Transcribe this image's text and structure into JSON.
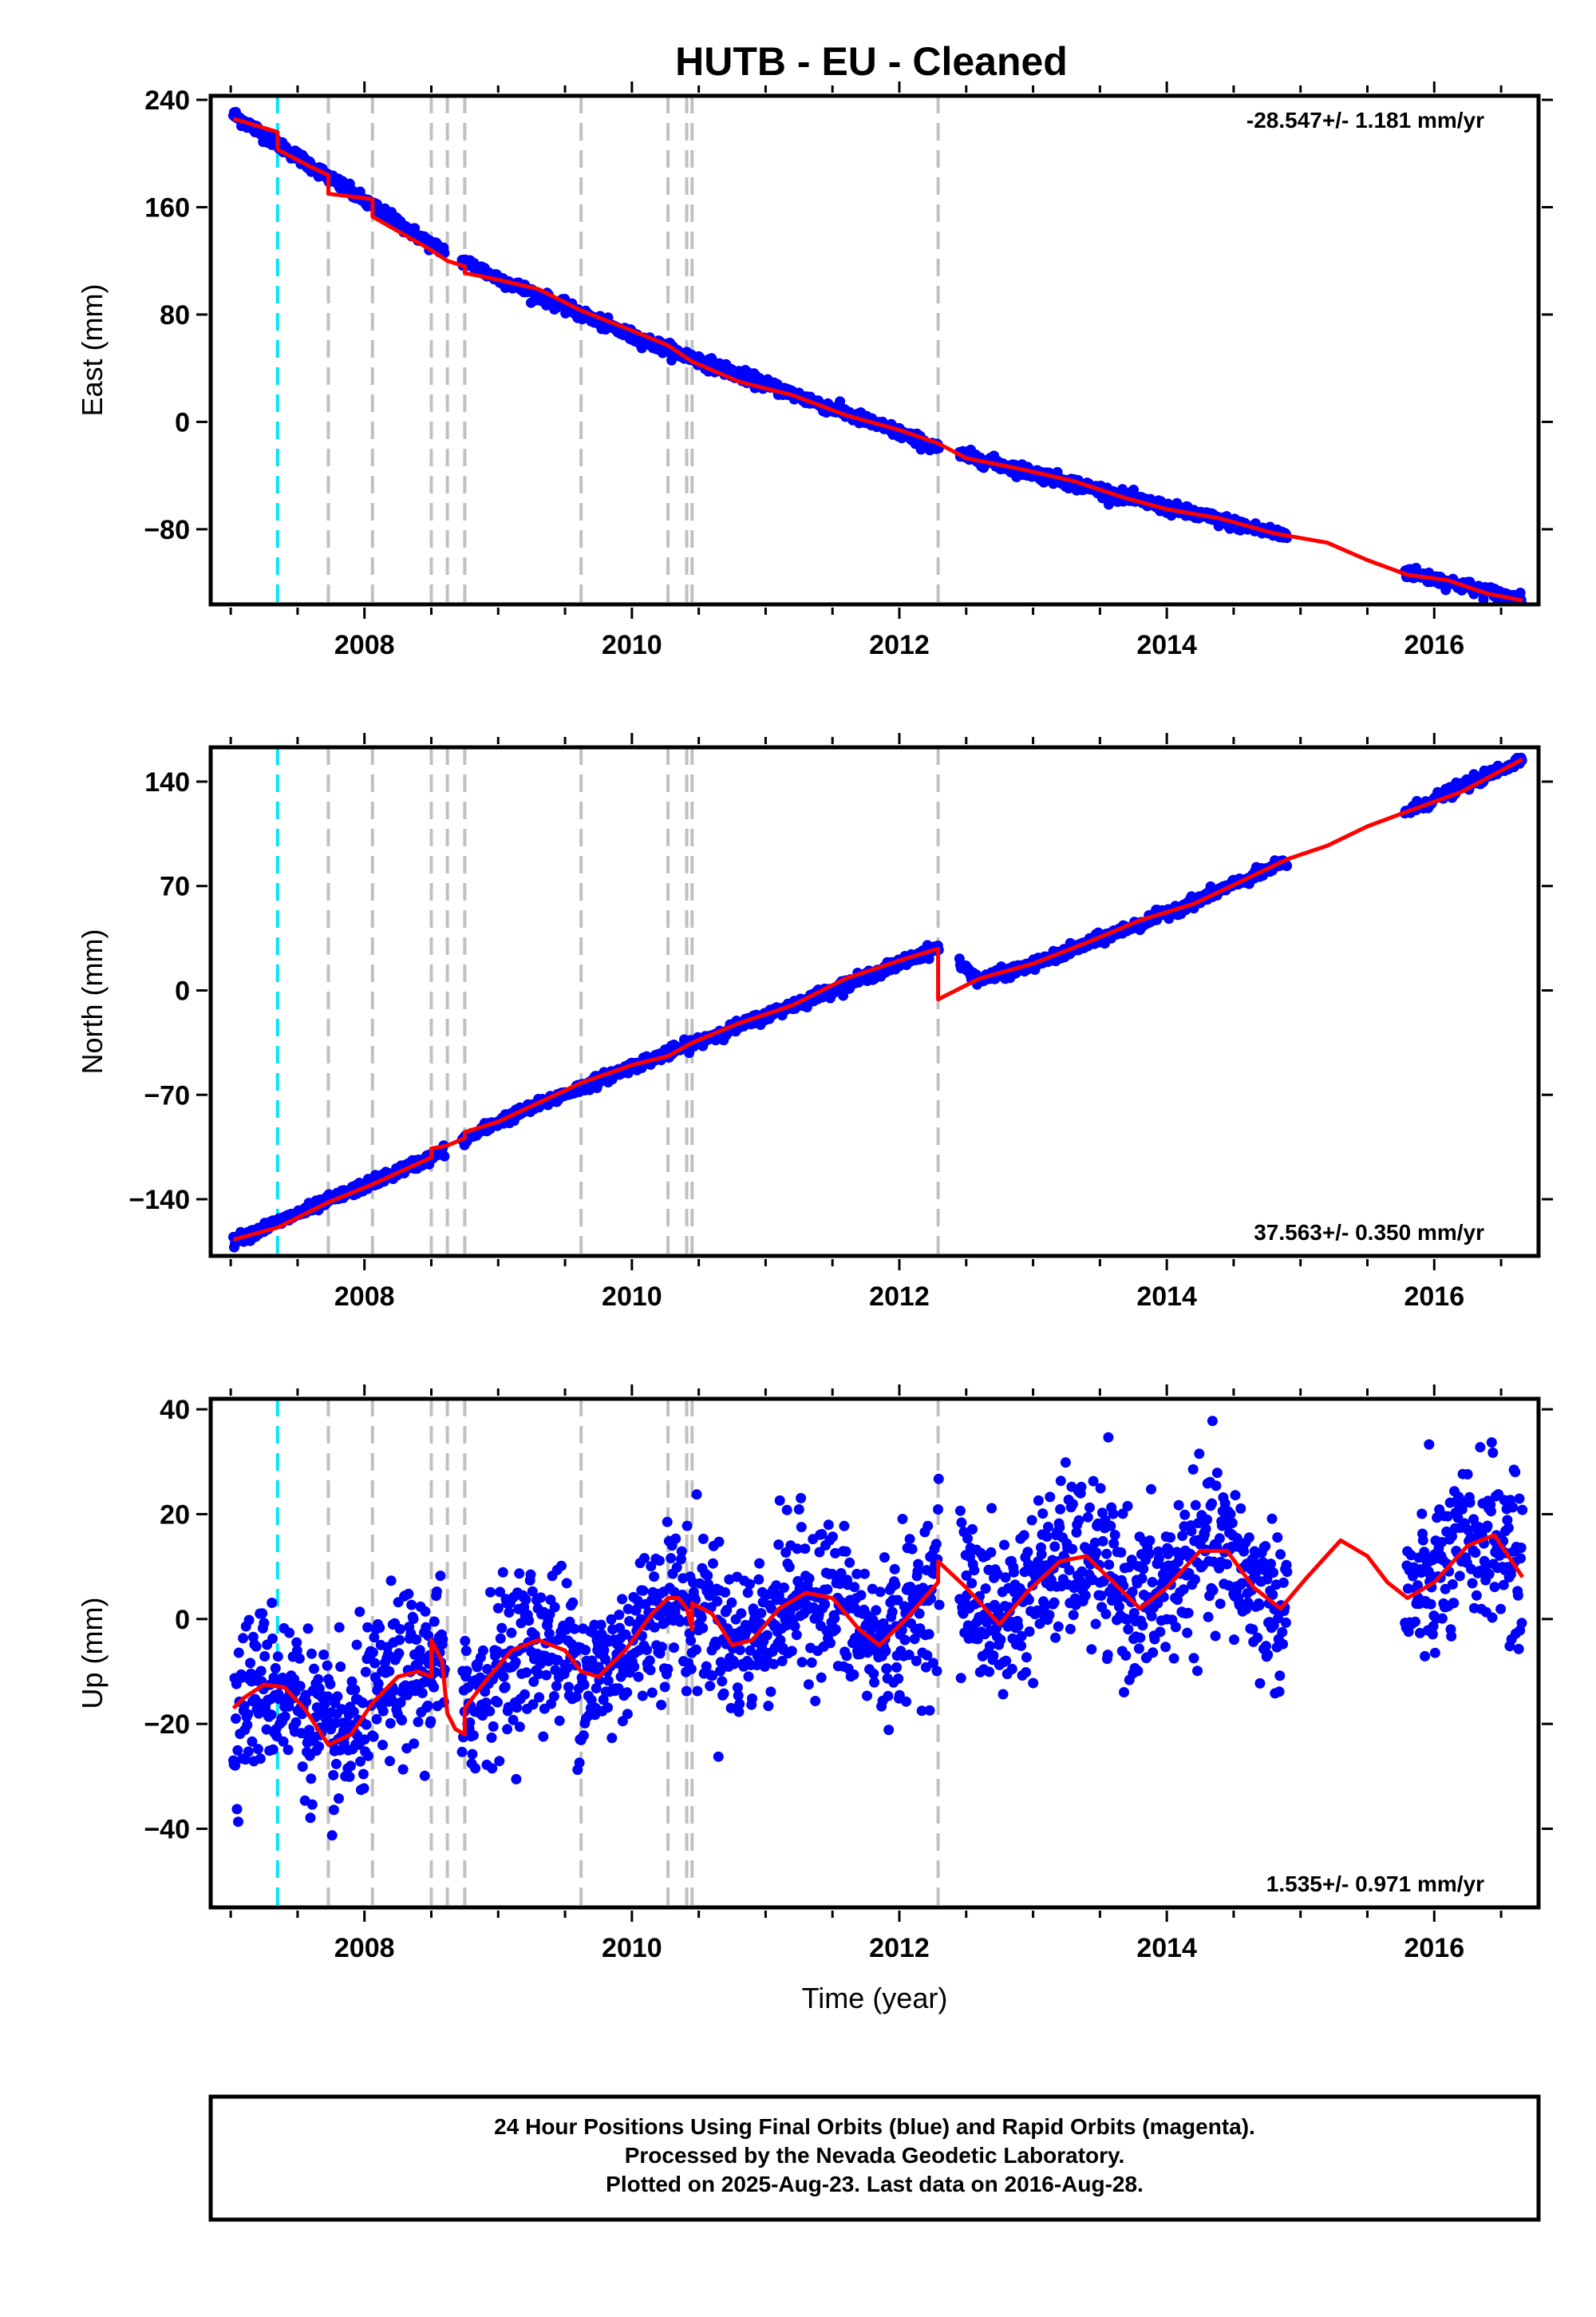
{
  "title": "HUTB  - EU - Cleaned",
  "colors": {
    "data": "#0000ff",
    "model": "#ff0000",
    "antenna_change": "#00e5ff",
    "event_line": "#c0c0c0"
  },
  "footer": {
    "line1": "24 Hour Positions Using Final Orbits (blue) and Rapid Orbits (magenta).",
    "line2": "Processed by the Nevada Geodetic Laboratory.",
    "line3": "Plotted on 2025-Aug-23. Last data on 2016-Aug-28."
  },
  "chart_data": [
    {
      "type": "scatter",
      "name": "east",
      "ylabel": "East (mm)",
      "xlabel": "",
      "rate": "-28.547+/- 1.181 mm/yr",
      "rate_position": "top-right",
      "xlim": [
        2006.85,
        2016.78
      ],
      "ylim": [
        -136,
        243
      ],
      "xticks": [
        2008,
        2010,
        2012,
        2014,
        2016
      ],
      "yticks": [
        240,
        160,
        80,
        0,
        -80
      ],
      "ytick_labels": [
        "240",
        "160",
        "80",
        "0",
        "−80"
      ],
      "antenna_change": [
        2007.35
      ],
      "events": [
        2007.73,
        2008.06,
        2008.5,
        2008.62,
        2008.75,
        2009.62,
        2010.27,
        2010.41,
        2010.45,
        2012.29
      ],
      "data_gaps": [
        [
          2008.6,
          2008.73
        ],
        [
          2012.3,
          2012.45
        ],
        [
          2014.9,
          2015.78
        ]
      ],
      "model": [
        [
          2007.02,
          226
        ],
        [
          2007.35,
          216
        ],
        [
          2007.35,
          203
        ],
        [
          2007.6,
          190
        ],
        [
          2007.73,
          184
        ],
        [
          2007.73,
          170
        ],
        [
          2008.06,
          166
        ],
        [
          2008.06,
          153
        ],
        [
          2008.5,
          128
        ],
        [
          2008.62,
          120
        ],
        [
          2008.75,
          116
        ],
        [
          2008.75,
          111
        ],
        [
          2009.0,
          106
        ],
        [
          2009.3,
          99
        ],
        [
          2009.62,
          83
        ],
        [
          2010.0,
          68
        ],
        [
          2010.27,
          57
        ],
        [
          2010.45,
          45
        ],
        [
          2010.8,
          30
        ],
        [
          2011.2,
          20
        ],
        [
          2011.6,
          5
        ],
        [
          2012.0,
          -6
        ],
        [
          2012.29,
          -16
        ],
        [
          2012.5,
          -27
        ],
        [
          2012.9,
          -35
        ],
        [
          2013.3,
          -44
        ],
        [
          2013.7,
          -57
        ],
        [
          2014.0,
          -65
        ],
        [
          2014.4,
          -72
        ],
        [
          2014.8,
          -83
        ],
        [
          2015.2,
          -90
        ],
        [
          2015.5,
          -103
        ],
        [
          2015.8,
          -114
        ],
        [
          2016.1,
          -118
        ],
        [
          2016.4,
          -128
        ],
        [
          2016.66,
          -133
        ]
      ],
      "trend": [
        [
          2007.02,
          229
        ],
        [
          2008.5,
          132
        ],
        [
          2009.0,
          107
        ],
        [
          2010.0,
          64
        ],
        [
          2011.0,
          28
        ],
        [
          2012.0,
          -8
        ],
        [
          2012.29,
          -20
        ],
        [
          2013.0,
          -38
        ],
        [
          2014.0,
          -64
        ],
        [
          2014.9,
          -85
        ],
        [
          2015.8,
          -112
        ],
        [
          2016.66,
          -133
        ]
      ],
      "noise": 2.2
    },
    {
      "type": "scatter",
      "name": "north",
      "ylabel": "North (mm)",
      "xlabel": "",
      "rate": "37.563+/- 0.350 mm/yr",
      "rate_position": "bottom-right",
      "xlim": [
        2006.85,
        2016.78
      ],
      "ylim": [
        -178,
        163
      ],
      "xticks": [
        2008,
        2010,
        2012,
        2014,
        2016
      ],
      "yticks": [
        140,
        70,
        0,
        -70,
        -140
      ],
      "ytick_labels": [
        "140",
        "70",
        "0",
        "−70",
        "−140"
      ],
      "antenna_change": [
        2007.35
      ],
      "events": [
        2007.73,
        2008.06,
        2008.5,
        2008.62,
        2008.75,
        2009.62,
        2010.27,
        2010.41,
        2010.45,
        2012.29
      ],
      "data_gaps": [
        [
          2008.6,
          2008.73
        ],
        [
          2012.3,
          2012.45
        ],
        [
          2014.9,
          2015.78
        ]
      ],
      "model": [
        [
          2007.02,
          -167
        ],
        [
          2007.35,
          -159
        ],
        [
          2007.73,
          -142
        ],
        [
          2008.06,
          -130
        ],
        [
          2008.5,
          -112
        ],
        [
          2008.5,
          -106
        ],
        [
          2008.62,
          -104
        ],
        [
          2008.75,
          -99
        ],
        [
          2008.75,
          -95
        ],
        [
          2009.0,
          -88
        ],
        [
          2009.62,
          -62
        ],
        [
          2010.0,
          -50
        ],
        [
          2010.27,
          -44
        ],
        [
          2010.45,
          -35
        ],
        [
          2010.8,
          -22
        ],
        [
          2011.2,
          -10
        ],
        [
          2011.6,
          8
        ],
        [
          2012.0,
          20
        ],
        [
          2012.29,
          28
        ],
        [
          2012.29,
          -6
        ],
        [
          2012.6,
          8
        ],
        [
          2013.0,
          18
        ],
        [
          2013.4,
          32
        ],
        [
          2013.8,
          47
        ],
        [
          2014.2,
          58
        ],
        [
          2014.6,
          75
        ],
        [
          2014.9,
          88
        ],
        [
          2015.2,
          97
        ],
        [
          2015.5,
          110
        ],
        [
          2015.8,
          120
        ],
        [
          2016.2,
          133
        ],
        [
          2016.66,
          155
        ]
      ],
      "trend": [
        [
          2007.02,
          -168
        ],
        [
          2008.5,
          -112
        ],
        [
          2009.0,
          -88
        ],
        [
          2010.0,
          -51
        ],
        [
          2011.0,
          -17
        ],
        [
          2012.0,
          18
        ],
        [
          2012.29,
          29
        ],
        [
          2012.6,
          7
        ],
        [
          2013.0,
          17
        ],
        [
          2014.0,
          52
        ],
        [
          2014.9,
          86
        ],
        [
          2015.8,
          120
        ],
        [
          2016.66,
          155
        ]
      ],
      "noise": 1.8
    },
    {
      "type": "scatter",
      "name": "up",
      "ylabel": "Up (mm)",
      "xlabel": "Time (year)",
      "rate": "1.535+/- 0.971 mm/yr",
      "rate_position": "bottom-right",
      "xlim": [
        2006.85,
        2016.78
      ],
      "ylim": [
        -55,
        42
      ],
      "xticks": [
        2008,
        2010,
        2012,
        2014,
        2016
      ],
      "yticks": [
        40,
        20,
        0,
        -20,
        -40
      ],
      "ytick_labels": [
        "40",
        "20",
        "0",
        "−20",
        "−40"
      ],
      "antenna_change": [
        2007.35
      ],
      "events": [
        2007.73,
        2008.06,
        2008.5,
        2008.62,
        2008.75,
        2009.62,
        2010.27,
        2010.41,
        2010.45,
        2012.29
      ],
      "data_gaps": [
        [
          2008.6,
          2008.73
        ],
        [
          2012.3,
          2012.45
        ],
        [
          2014.9,
          2015.78
        ]
      ],
      "model": [
        [
          2007.02,
          -17
        ],
        [
          2007.1,
          -15
        ],
        [
          2007.25,
          -12.5
        ],
        [
          2007.4,
          -13
        ],
        [
          2007.55,
          -17
        ],
        [
          2007.73,
          -24
        ],
        [
          2007.9,
          -22
        ],
        [
          2008.06,
          -16
        ],
        [
          2008.25,
          -11
        ],
        [
          2008.4,
          -10
        ],
        [
          2008.5,
          -11
        ],
        [
          2008.5,
          -4
        ],
        [
          2008.58,
          -8
        ],
        [
          2008.62,
          -18
        ],
        [
          2008.68,
          -21
        ],
        [
          2008.75,
          -22
        ],
        [
          2008.75,
          -17
        ],
        [
          2008.9,
          -12
        ],
        [
          2009.1,
          -6
        ],
        [
          2009.3,
          -4
        ],
        [
          2009.5,
          -6
        ],
        [
          2009.62,
          -10
        ],
        [
          2009.75,
          -11
        ],
        [
          2009.95,
          -6
        ],
        [
          2010.15,
          1
        ],
        [
          2010.27,
          4
        ],
        [
          2010.35,
          4
        ],
        [
          2010.41,
          2
        ],
        [
          2010.45,
          -2
        ],
        [
          2010.45,
          3
        ],
        [
          2010.6,
          1
        ],
        [
          2010.75,
          -5
        ],
        [
          2010.9,
          -4
        ],
        [
          2011.1,
          2
        ],
        [
          2011.3,
          5
        ],
        [
          2011.5,
          4
        ],
        [
          2011.7,
          -2
        ],
        [
          2011.85,
          -5
        ],
        [
          2012.05,
          0
        ],
        [
          2012.29,
          7
        ],
        [
          2012.29,
          11
        ],
        [
          2012.5,
          6
        ],
        [
          2012.75,
          -1
        ],
        [
          2012.95,
          5
        ],
        [
          2013.2,
          11
        ],
        [
          2013.4,
          12
        ],
        [
          2013.6,
          7
        ],
        [
          2013.8,
          2
        ],
        [
          2014.0,
          6
        ],
        [
          2014.25,
          13
        ],
        [
          2014.45,
          13
        ],
        [
          2014.65,
          6
        ],
        [
          2014.85,
          2
        ],
        [
          2015.05,
          8
        ],
        [
          2015.3,
          15
        ],
        [
          2015.5,
          12
        ],
        [
          2015.65,
          7
        ],
        [
          2015.8,
          4
        ],
        [
          2016.0,
          7
        ],
        [
          2016.25,
          14
        ],
        [
          2016.45,
          16
        ],
        [
          2016.66,
          8
        ]
      ],
      "noise": 7.5
    }
  ]
}
